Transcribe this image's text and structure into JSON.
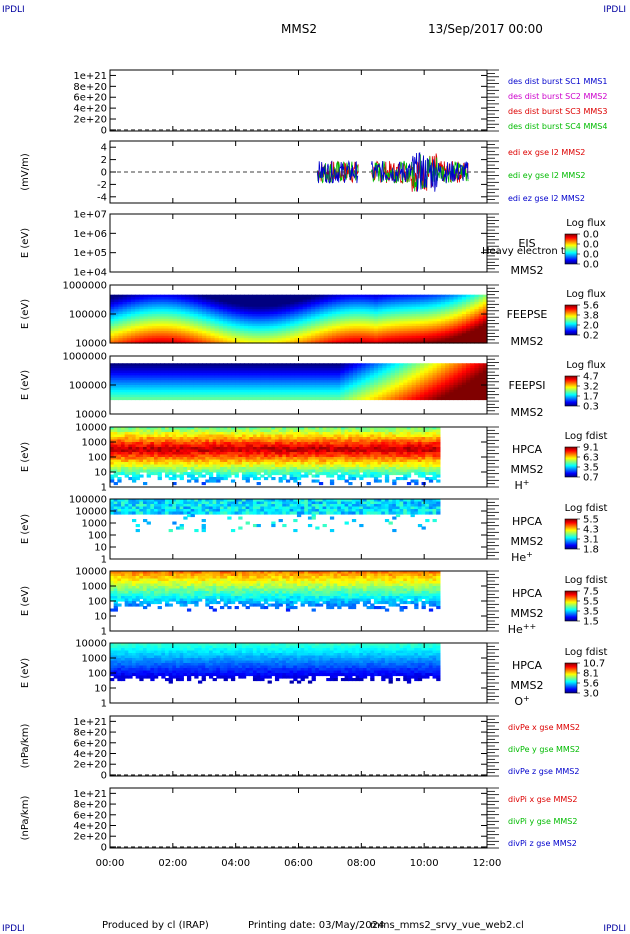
{
  "corner_label": "IPDLI",
  "header": {
    "spacecraft": "MMS2",
    "date": "13/Sep/2017 00:00"
  },
  "footer": {
    "producer": "Produced by cl (IRAP)",
    "printing": "Printing date: 03/May/2024",
    "script": "mms_mms2_srvy_vue_web2.cl"
  },
  "chart_data": {
    "type": "heatmap",
    "x_ticks": [
      "00:00",
      "02:00",
      "04:00",
      "06:00",
      "08:00",
      "10:00",
      "12:00"
    ],
    "xlim_hours": [
      0,
      12
    ],
    "panels": [
      {
        "kind": "line",
        "ylabel": "",
        "yticks": [
          "1e+21",
          "8e+20",
          "6e+20",
          "4e+20",
          "2e+20",
          "0"
        ],
        "ylim": [
          -2e+19,
          1.1e+21
        ],
        "legend": [
          {
            "text": "des dist burst SC1 MMS1",
            "color": "#0000cc"
          },
          {
            "text": "des dist burst SC2 MMS2",
            "color": "#cc00cc"
          },
          {
            "text": "des dist burst SC3 MMS3",
            "color": "#dd0000"
          },
          {
            "text": "des dist burst SC4 MMS4",
            "color": "#00bb00"
          }
        ]
      },
      {
        "kind": "line",
        "ylabel": "(mV/m)",
        "yticks": [
          "4",
          "2",
          "0",
          "-2",
          "-4"
        ],
        "ylim": [
          -5,
          5
        ],
        "legend": [
          {
            "text": "edi ex gse l2 MMS2",
            "color": "#dd0000"
          },
          {
            "text": "edi ey gse l2 MMS2",
            "color": "#00bb00"
          },
          {
            "text": "edi ez gse l2 MMS2",
            "color": "#0000cc"
          }
        ]
      },
      {
        "kind": "spec",
        "ylabel": "E (eV)",
        "yticks": [
          "1e+07",
          "1e+06",
          "1e+05",
          "1e+04"
        ],
        "name": "EIS",
        "extra": "Heavy electron to",
        "sc": "MMS2",
        "ion": "",
        "cbar_title": "Log flux",
        "cbar_ticks": [
          "0.0",
          "0.0",
          "0.0",
          "0.0"
        ],
        "data_end": 0
      },
      {
        "kind": "spec",
        "ylabel": "E (eV)",
        "yticks": [
          "1000000",
          "100000",
          "10000"
        ],
        "name": "FEEPSE",
        "sc": "MMS2",
        "ion": "",
        "cbar_title": "Log flux",
        "cbar_ticks": [
          "5.6",
          "3.8",
          "2.0",
          "0.2"
        ],
        "data_end": 12
      },
      {
        "kind": "spec",
        "ylabel": "E (eV)",
        "yticks": [
          "1000000",
          "100000",
          "10000"
        ],
        "name": "FEEPSI",
        "sc": "MMS2",
        "ion": "",
        "cbar_title": "Log flux",
        "cbar_ticks": [
          "4.7",
          "3.2",
          "1.7",
          "0.3"
        ],
        "data_end": 12
      },
      {
        "kind": "spec",
        "ylabel": "E (eV)",
        "yticks": [
          "10000",
          "1000",
          "100",
          "10",
          "1"
        ],
        "name": "HPCA",
        "sc": "MMS2",
        "ion": "H",
        "ion_sup": "+",
        "cbar_title": "Log fdist",
        "cbar_ticks": [
          "9.1",
          "6.3",
          "3.5",
          "0.7"
        ],
        "data_end": 10.5
      },
      {
        "kind": "spec",
        "ylabel": "E (eV)",
        "yticks": [
          "100000",
          "10000",
          "1000",
          "100",
          "10",
          "1"
        ],
        "name": "HPCA",
        "sc": "MMS2",
        "ion": "He",
        "ion_sup": "+",
        "cbar_title": "Log fdist",
        "cbar_ticks": [
          "5.5",
          "4.3",
          "3.1",
          "1.8"
        ],
        "data_end": 10.5
      },
      {
        "kind": "spec",
        "ylabel": "E (eV)",
        "yticks": [
          "10000",
          "1000",
          "100",
          "10",
          "1"
        ],
        "name": "HPCA",
        "sc": "MMS2",
        "ion": "He",
        "ion_sup": "++",
        "cbar_title": "Log fdist",
        "cbar_ticks": [
          "7.5",
          "5.5",
          "3.5",
          "1.5"
        ],
        "data_end": 10.5
      },
      {
        "kind": "spec",
        "ylabel": "E (eV)",
        "yticks": [
          "10000",
          "1000",
          "100",
          "10",
          "1"
        ],
        "name": "HPCA",
        "sc": "MMS2",
        "ion": "O",
        "ion_sup": "+",
        "cbar_title": "Log fdist",
        "cbar_ticks": [
          "10.7",
          "8.1",
          "5.6",
          "3.0"
        ],
        "data_end": 10.5
      },
      {
        "kind": "line",
        "ylabel": "(nPa/km)",
        "yticks": [
          "1e+21",
          "8e+20",
          "6e+20",
          "4e+20",
          "2e+20",
          "0"
        ],
        "ylim": [
          -2e+19,
          1.1e+21
        ],
        "legend": [
          {
            "text": "divPe x gse MMS2",
            "color": "#dd0000"
          },
          {
            "text": "divPe y gse MMS2",
            "color": "#00bb00"
          },
          {
            "text": "divPe z gse MMS2",
            "color": "#0000cc"
          }
        ]
      },
      {
        "kind": "line",
        "ylabel": "(nPa/km)",
        "yticks": [
          "1e+21",
          "8e+20",
          "6e+20",
          "4e+20",
          "2e+20",
          "0"
        ],
        "ylim": [
          -2e+19,
          1.1e+21
        ],
        "legend": [
          {
            "text": "divPi x gse MMS2",
            "color": "#dd0000"
          },
          {
            "text": "divPi y gse MMS2",
            "color": "#00bb00"
          },
          {
            "text": "divPi z gse MMS2",
            "color": "#0000cc"
          }
        ]
      }
    ]
  }
}
